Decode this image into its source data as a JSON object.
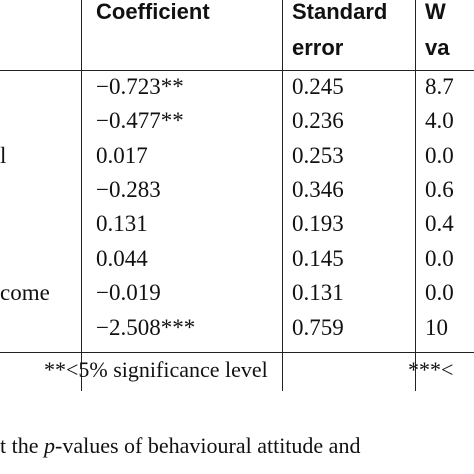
{
  "table": {
    "headers": {
      "coefficient": "Coefficient",
      "std_error_line1": "Standard",
      "std_error_line2": "error",
      "wald_line1": "W",
      "wald_line2": "va"
    },
    "rows": [
      {
        "label": "",
        "coefficient": "−0.723**",
        "std_error": "0.245",
        "wald": "8.7"
      },
      {
        "label": "",
        "coefficient": "−0.477**",
        "std_error": "0.236",
        "wald": "4.0"
      },
      {
        "label": "l",
        "coefficient": "0.017",
        "std_error": "0.253",
        "wald": "0.0"
      },
      {
        "label": "",
        "coefficient": "−0.283",
        "std_error": "0.346",
        "wald": "0.6"
      },
      {
        "label": "",
        "coefficient": "0.131",
        "std_error": "0.193",
        "wald": "0.4"
      },
      {
        "label": "",
        "coefficient": "0.044",
        "std_error": "0.145",
        "wald": "0.0"
      },
      {
        "label": "come",
        "coefficient": "−0.019",
        "std_error": "0.131",
        "wald": "0.0"
      },
      {
        "label": "",
        "coefficient": "−2.508***",
        "std_error": "0.759",
        "wald": "10"
      }
    ],
    "footnote_left": "**<5% significance level",
    "footnote_right": "***<"
  },
  "caption": {
    "prefix": "t the ",
    "p": "p",
    "suffix": "-values of behavioural attitude and"
  }
}
